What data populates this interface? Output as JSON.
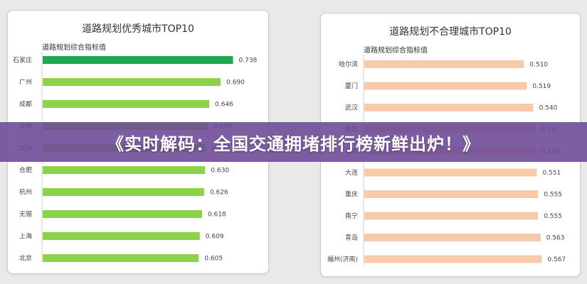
{
  "banner": {
    "text": "《实时解码：全国交通拥堵排行榜新鲜出炉！》"
  },
  "chart_data": [
    {
      "type": "bar",
      "orientation": "horizontal",
      "title": "道路规划优秀城市TOP10",
      "categories": [
        "石家庄",
        "广州",
        "成都",
        "昆明",
        "兰州",
        "合肥",
        "杭州",
        "无锡",
        "上海",
        "北京"
      ],
      "series": [
        {
          "name": "道路规划综合指标值",
          "values": [
            0.738,
            0.69,
            0.646,
            0.639,
            0.632,
            0.63,
            0.626,
            0.618,
            0.609,
            0.605
          ],
          "value_labels": [
            "0.738",
            "0.690",
            "0.646",
            "0.639",
            "0.632",
            "0.630",
            "0.626",
            "0.618",
            "0.609",
            "0.605"
          ]
        }
      ],
      "colors": {
        "highlight": "#1fa84e",
        "bar": "#8dd24b",
        "highlight_index": 0
      },
      "xlim": [
        0,
        0.8
      ],
      "grid": false
    },
    {
      "type": "bar",
      "orientation": "horizontal",
      "title": "道路规划不合理城市TOP10",
      "categories": [
        "哈尔滨",
        "厦门",
        "武汉",
        "贵阳",
        "西安",
        "大连",
        "重庆",
        "南宁",
        "青岛",
        "福州(济南)"
      ],
      "series": [
        {
          "name": "道路规划综合指标值",
          "values": [
            0.51,
            0.519,
            0.54,
            0.547,
            0.548,
            0.551,
            0.555,
            0.555,
            0.563,
            0.567
          ],
          "value_labels": [
            "0.510",
            "0.519",
            "0.540",
            "0.547",
            "0.548",
            "0.551",
            "0.555",
            "0.555",
            "0.563",
            "0.567"
          ]
        }
      ],
      "colors": {
        "bar": "#f7cba9"
      },
      "xlim": [
        0,
        0.6
      ],
      "grid": false
    }
  ]
}
